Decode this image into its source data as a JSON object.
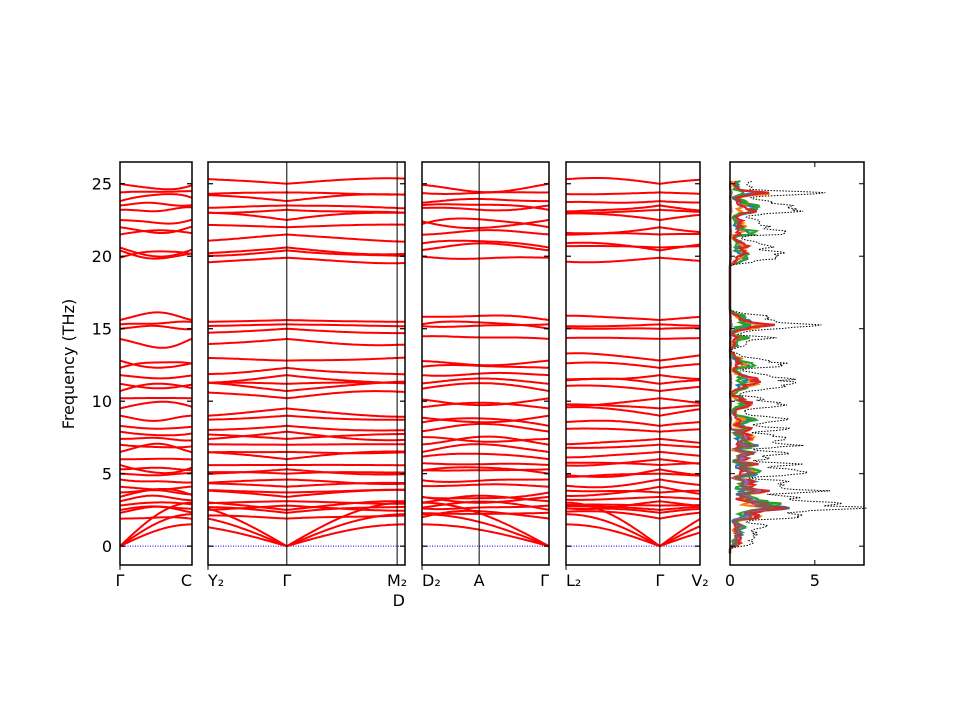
{
  "chart_data": {
    "type": "line",
    "title": "",
    "ylabel": "Frequency (THz)",
    "ylim": [
      -1.3,
      26.5
    ],
    "yticks": [
      0,
      5,
      10,
      15,
      20,
      25
    ],
    "band_color": "#ff0000",
    "zero_line_color": "#0000ff",
    "panels": [
      {
        "kpoints": [
          {
            "label": "Γ",
            "k": 0
          },
          {
            "label": "C",
            "k": 1
          }
        ]
      },
      {
        "kpoints": [
          {
            "label": "Y₂",
            "k": 0
          },
          {
            "label": "Γ",
            "k": 0.4
          },
          {
            "label": "M₂",
            "k": 0.96
          },
          {
            "label": "D",
            "k": 1
          }
        ]
      },
      {
        "kpoints": [
          {
            "label": "D₂",
            "k": 0
          },
          {
            "label": "A",
            "k": 0.45
          },
          {
            "label": "Γ",
            "k": 1
          }
        ]
      },
      {
        "kpoints": [
          {
            "label": "L₂",
            "k": 0
          },
          {
            "label": "Γ",
            "k": 0.7
          },
          {
            "label": "V₂",
            "k": 1
          }
        ]
      }
    ],
    "gamma_frequencies": [
      0,
      0,
      0,
      1.9,
      2.3,
      2.5,
      2.8,
      3.1,
      3.4,
      3.7,
      4.1,
      4.6,
      5.0,
      5.3,
      5.6,
      6.0,
      6.5,
      7.0,
      7.4,
      7.9,
      8.3,
      9.0,
      9.5,
      10.2,
      10.7,
      11.2,
      11.8,
      12.3,
      12.8,
      14.3,
      15.0,
      15.3,
      15.6,
      19.9,
      20.4,
      20.6,
      21.5,
      22.0,
      22.5,
      23.2,
      23.5,
      23.8,
      24.4,
      25.0
    ],
    "dos": {
      "xlim": [
        0,
        7.9
      ],
      "xticks": [
        0,
        5
      ],
      "total_style": "black dotted",
      "partials": [
        {
          "color": "#1f77b4"
        },
        {
          "color": "#ff7f0e"
        },
        {
          "color": "#2ca02c"
        },
        {
          "color": "#d62728"
        },
        {
          "color": "#9467bd"
        },
        {
          "color": "#8c564b"
        }
      ]
    }
  }
}
